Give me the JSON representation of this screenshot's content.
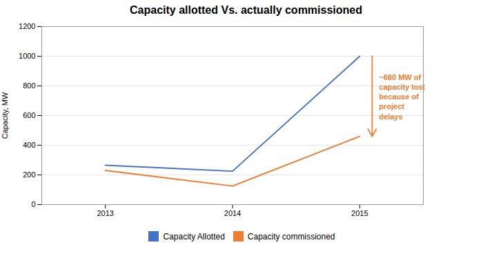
{
  "chart_data": {
    "type": "line",
    "title": "Capacity allotted Vs. actually commissioned",
    "ylabel": "Capacity, MW",
    "x": [
      2013,
      2014,
      2015
    ],
    "series": [
      {
        "name": "Capacity Allotted",
        "color": "#4472c4",
        "values": [
          265,
          225,
          1000
        ]
      },
      {
        "name": "Capacity commissioned",
        "color": "#ed7d31",
        "values": [
          230,
          125,
          460
        ]
      }
    ],
    "xlim": [
      2012.5,
      2015.5
    ],
    "xticks": [
      2013,
      2014,
      2015
    ],
    "ylim": [
      0,
      1200
    ],
    "yticks": [
      0,
      200,
      400,
      600,
      800,
      1000,
      1200
    ],
    "grid": true,
    "legend": "bottom",
    "annotations": [
      {
        "text": "~680 MW of\ncapacity lost\nbecause of\nproject\ndelays",
        "x": 2015,
        "y_from": 1000,
        "y_to": 460,
        "color": "#ed7d31"
      }
    ]
  }
}
